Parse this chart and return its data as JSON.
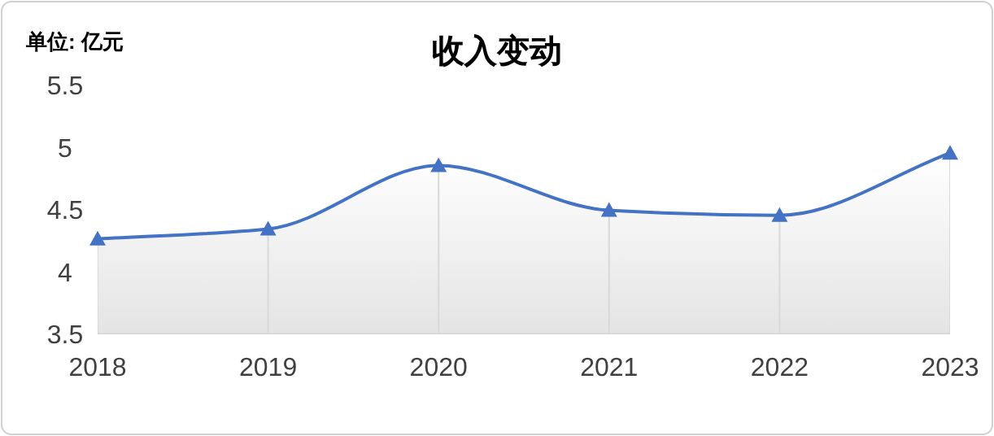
{
  "chart_data": {
    "type": "area",
    "title": "收入变动",
    "ylabel": "单位: 亿元",
    "categories": [
      "2018",
      "2019",
      "2020",
      "2021",
      "2022",
      "2023"
    ],
    "series": [
      {
        "color": "#4472c4",
        "values": [
          4.26,
          4.34,
          4.85,
          4.49,
          4.45,
          4.95
        ]
      }
    ],
    "ylim": [
      3.5,
      5.5
    ],
    "yticks": [
      3.5,
      4,
      4.5,
      5,
      5.5
    ],
    "marker": "triangle",
    "grid": "x",
    "legend": false
  }
}
